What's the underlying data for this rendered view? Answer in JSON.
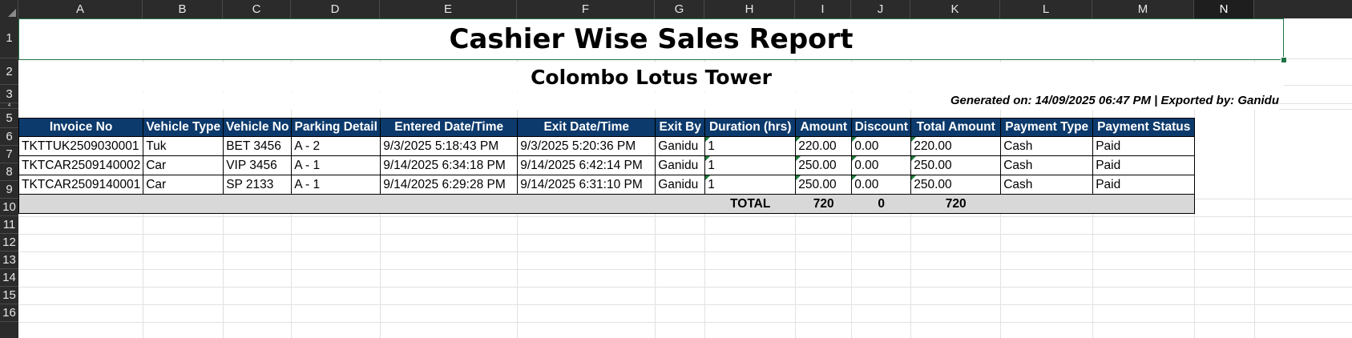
{
  "columns": [
    "A",
    "B",
    "C",
    "D",
    "E",
    "F",
    "G",
    "H",
    "I",
    "J",
    "K",
    "L",
    "M",
    "N"
  ],
  "rows": [
    "1",
    "2",
    "3",
    "4",
    "5",
    "6",
    "7",
    "8",
    "9",
    "10",
    "11",
    "12",
    "13",
    "14",
    "15",
    "16"
  ],
  "report": {
    "title": "Cashier Wise Sales Report",
    "subtitle": "Colombo Lotus Tower",
    "generated": "Generated on: 14/09/2025 06:47 PM | Exported by: Ganidu"
  },
  "table": {
    "headers": [
      "Invoice No",
      "Vehicle Type",
      "Vehicle No",
      "Parking Detail",
      "Entered Date/Time",
      "Exit Date/Time",
      "Exit By",
      "Duration (hrs)",
      "Amount",
      "Discount",
      "Total Amount",
      "Payment Type",
      "Payment Status"
    ],
    "rows": [
      [
        "TKTTUK2509030001",
        "Tuk",
        "BET 3456",
        "A - 2",
        "9/3/2025 5:18:43 PM",
        "9/3/2025 5:20:36 PM",
        "Ganidu",
        "1",
        "220.00",
        "0.00",
        "220.00",
        "Cash",
        "Paid"
      ],
      [
        "TKTCAR2509140002",
        "Car",
        "VIP 3456",
        "A - 1",
        "9/14/2025 6:34:18 PM",
        "9/14/2025 6:42:14 PM",
        "Ganidu",
        "1",
        "250.00",
        "0.00",
        "250.00",
        "Cash",
        "Paid"
      ],
      [
        "TKTCAR2509140001",
        "Car",
        "SP 2133",
        "A - 1",
        "9/14/2025 6:29:28 PM",
        "9/14/2025 6:31:10 PM",
        "Ganidu",
        "1",
        "250.00",
        "0.00",
        "250.00",
        "Cash",
        "Paid"
      ]
    ],
    "total": {
      "label": "TOTAL",
      "amount": "720",
      "discount": "0",
      "total_amount": "720"
    }
  },
  "colors": {
    "header_bg": "#0d3a6c",
    "total_bg": "#d8d8d8",
    "selection": "#217346"
  }
}
